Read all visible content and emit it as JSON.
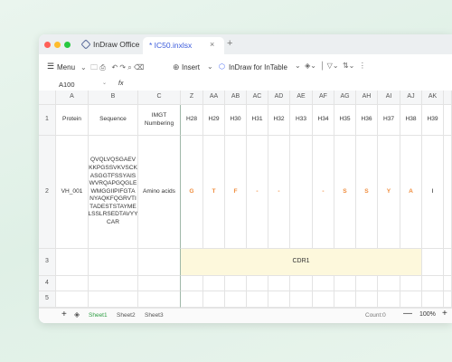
{
  "window": {
    "tabs": [
      "InDraw Office",
      "* IC50.inxlsx"
    ]
  },
  "toolbar": {
    "menu": "Menu",
    "insert": "Insert",
    "plugin": "InDraw for InTable"
  },
  "formula_bar": {
    "cell_ref": "A100",
    "fx": "fx"
  },
  "sheet": {
    "columns": [
      "A",
      "B",
      "C",
      "Z",
      "AA",
      "AB",
      "AC",
      "AD",
      "AE",
      "AF",
      "AG",
      "AH",
      "AI",
      "AJ",
      "AK"
    ],
    "rows": [
      {
        "header": "1",
        "cells": [
          "Protein",
          "Sequence",
          [
            "IMGT",
            "Numbering"
          ],
          "H28",
          "H29",
          "H30",
          "H31",
          "H32",
          "H33",
          "H34",
          "H35",
          "H36",
          "H37",
          "H38",
          "H39"
        ]
      },
      {
        "header": "2",
        "cells": [
          "VH_001",
          [
            "QVQLVQSGAEV",
            "KKPGSSVKVSCK",
            "ASGGTFSSYAIS",
            "WVRQAPGQGLE",
            "WMGGIIPIFGTA",
            "NYAQKFQGRVTI",
            "TADESTSTAYME",
            "LSSLRSEDTAVYY",
            "CAR"
          ],
          "Amino acids",
          "G",
          "T",
          "F",
          "-",
          "-",
          null,
          "-",
          "S",
          "S",
          "Y",
          "A",
          "I"
        ]
      },
      {
        "header": "3",
        "cells": [
          null,
          null,
          null,
          "CDR1",
          null,
          null,
          null,
          null,
          null,
          null,
          null,
          null,
          null,
          null,
          null
        ]
      },
      {
        "header": "4",
        "cells": [
          null,
          null,
          null,
          null,
          null,
          null,
          null,
          null,
          null,
          null,
          null,
          null,
          null,
          null,
          null
        ]
      },
      {
        "header": "5",
        "cells": [
          null,
          null,
          null,
          null,
          null,
          null,
          null,
          null,
          null,
          null,
          null,
          null,
          null,
          null,
          null
        ]
      }
    ]
  },
  "footer": {
    "sheets": [
      "Sheet1",
      "Sheet2",
      "Sheet3"
    ],
    "count": "Count:0",
    "zoom": "100%"
  }
}
